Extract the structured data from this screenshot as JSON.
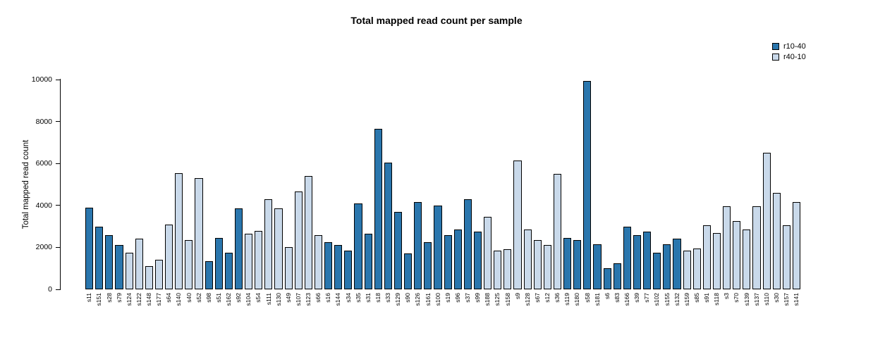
{
  "chart_data": {
    "type": "bar",
    "title": "Total mapped read count per sample",
    "ylabel": "Total mapped read count",
    "xlabel": "",
    "ylim": [
      0,
      10000
    ],
    "yticks": [
      0,
      2000,
      4000,
      6000,
      8000,
      10000
    ],
    "grid": false,
    "legend_position": "top-right",
    "legend": [
      {
        "label": "r10-40",
        "color": "#2a76ad"
      },
      {
        "label": "r40-10",
        "color": "#c9d9ea"
      }
    ],
    "bars": [
      {
        "sample": "s11",
        "value": 3900,
        "group": "r10-40"
      },
      {
        "sample": "s151",
        "value": 3000,
        "group": "r10-40"
      },
      {
        "sample": "s28",
        "value": 2600,
        "group": "r10-40"
      },
      {
        "sample": "s79",
        "value": 2100,
        "group": "r10-40"
      },
      {
        "sample": "s124",
        "value": 1750,
        "group": "r40-10"
      },
      {
        "sample": "s122",
        "value": 2400,
        "group": "r40-10"
      },
      {
        "sample": "s148",
        "value": 1100,
        "group": "r40-10"
      },
      {
        "sample": "s177",
        "value": 1400,
        "group": "r40-10"
      },
      {
        "sample": "s64",
        "value": 3100,
        "group": "r40-10"
      },
      {
        "sample": "s140",
        "value": 5550,
        "group": "r40-10"
      },
      {
        "sample": "s40",
        "value": 2350,
        "group": "r40-10"
      },
      {
        "sample": "s52",
        "value": 5300,
        "group": "r40-10"
      },
      {
        "sample": "s98",
        "value": 1350,
        "group": "r10-40"
      },
      {
        "sample": "s51",
        "value": 2450,
        "group": "r10-40"
      },
      {
        "sample": "s162",
        "value": 1750,
        "group": "r10-40"
      },
      {
        "sample": "s92",
        "value": 3850,
        "group": "r10-40"
      },
      {
        "sample": "s104",
        "value": 2650,
        "group": "r40-10"
      },
      {
        "sample": "s54",
        "value": 2800,
        "group": "r40-10"
      },
      {
        "sample": "s111",
        "value": 4300,
        "group": "r40-10"
      },
      {
        "sample": "s130",
        "value": 3850,
        "group": "r40-10"
      },
      {
        "sample": "s49",
        "value": 2000,
        "group": "r40-10"
      },
      {
        "sample": "s107",
        "value": 4650,
        "group": "r40-10"
      },
      {
        "sample": "s123",
        "value": 5400,
        "group": "r40-10"
      },
      {
        "sample": "s66",
        "value": 2600,
        "group": "r40-10"
      },
      {
        "sample": "s16",
        "value": 2250,
        "group": "r10-40"
      },
      {
        "sample": "s144",
        "value": 2100,
        "group": "r10-40"
      },
      {
        "sample": "s34",
        "value": 1850,
        "group": "r10-40"
      },
      {
        "sample": "s35",
        "value": 4100,
        "group": "r10-40"
      },
      {
        "sample": "s31",
        "value": 2650,
        "group": "r10-40"
      },
      {
        "sample": "s18",
        "value": 7650,
        "group": "r10-40"
      },
      {
        "sample": "s33",
        "value": 6050,
        "group": "r10-40"
      },
      {
        "sample": "s129",
        "value": 3700,
        "group": "r10-40"
      },
      {
        "sample": "s90",
        "value": 1700,
        "group": "r10-40"
      },
      {
        "sample": "s126",
        "value": 4150,
        "group": "r10-40"
      },
      {
        "sample": "s161",
        "value": 2250,
        "group": "r10-40"
      },
      {
        "sample": "s100",
        "value": 4000,
        "group": "r10-40"
      },
      {
        "sample": "s19",
        "value": 2600,
        "group": "r10-40"
      },
      {
        "sample": "s96",
        "value": 2850,
        "group": "r10-40"
      },
      {
        "sample": "s37",
        "value": 4300,
        "group": "r10-40"
      },
      {
        "sample": "s99",
        "value": 2750,
        "group": "r10-40"
      },
      {
        "sample": "s188",
        "value": 3450,
        "group": "r40-10"
      },
      {
        "sample": "s125",
        "value": 1850,
        "group": "r40-10"
      },
      {
        "sample": "s158",
        "value": 1900,
        "group": "r40-10"
      },
      {
        "sample": "s9",
        "value": 6150,
        "group": "r40-10"
      },
      {
        "sample": "s128",
        "value": 2850,
        "group": "r40-10"
      },
      {
        "sample": "s67",
        "value": 2350,
        "group": "r40-10"
      },
      {
        "sample": "s12",
        "value": 2100,
        "group": "r40-10"
      },
      {
        "sample": "s36",
        "value": 5500,
        "group": "r40-10"
      },
      {
        "sample": "s119",
        "value": 2450,
        "group": "r10-40"
      },
      {
        "sample": "s180",
        "value": 2350,
        "group": "r10-40"
      },
      {
        "sample": "s58",
        "value": 9950,
        "group": "r10-40"
      },
      {
        "sample": "s181",
        "value": 2150,
        "group": "r10-40"
      },
      {
        "sample": "s6",
        "value": 1000,
        "group": "r10-40"
      },
      {
        "sample": "s83",
        "value": 1250,
        "group": "r10-40"
      },
      {
        "sample": "s166",
        "value": 3000,
        "group": "r10-40"
      },
      {
        "sample": "s39",
        "value": 2600,
        "group": "r10-40"
      },
      {
        "sample": "s77",
        "value": 2750,
        "group": "r10-40"
      },
      {
        "sample": "s102",
        "value": 1750,
        "group": "r10-40"
      },
      {
        "sample": "s155",
        "value": 2150,
        "group": "r10-40"
      },
      {
        "sample": "s132",
        "value": 2400,
        "group": "r10-40"
      },
      {
        "sample": "s159",
        "value": 1850,
        "group": "r40-10"
      },
      {
        "sample": "s85",
        "value": 1950,
        "group": "r40-10"
      },
      {
        "sample": "s91",
        "value": 3050,
        "group": "r40-10"
      },
      {
        "sample": "s118",
        "value": 2700,
        "group": "r40-10"
      },
      {
        "sample": "s3",
        "value": 3950,
        "group": "r40-10"
      },
      {
        "sample": "s70",
        "value": 3250,
        "group": "r40-10"
      },
      {
        "sample": "s139",
        "value": 2850,
        "group": "r40-10"
      },
      {
        "sample": "s137",
        "value": 3950,
        "group": "r40-10"
      },
      {
        "sample": "s110",
        "value": 6500,
        "group": "r40-10"
      },
      {
        "sample": "s30",
        "value": 4600,
        "group": "r40-10"
      },
      {
        "sample": "s157",
        "value": 3050,
        "group": "r40-10"
      },
      {
        "sample": "s141",
        "value": 4150,
        "group": "r40-10"
      }
    ]
  }
}
